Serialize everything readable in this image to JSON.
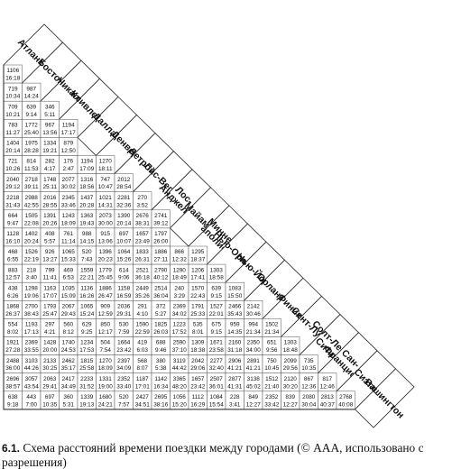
{
  "cities": [
    [
      "Атланта"
    ],
    [
      "Бостон"
    ],
    [
      "Чикаго"
    ],
    [
      "Кливленд"
    ],
    [
      "Даллас"
    ],
    [
      "Денвер"
    ],
    [
      "Детройт"
    ],
    [
      "Лас-Вегас"
    ],
    [
      "Лос-",
      "Анджелес"
    ],
    [
      "Майами"
    ],
    [
      "Минне-",
      "аполис"
    ],
    [
      "Нью-Орлеан"
    ],
    [
      "Нью-Йорк"
    ],
    [
      "Орландо"
    ],
    [
      "Финикс"
    ],
    [
      "Сент-Луис"
    ],
    [
      "Солт-Лейк-",
      "Сити"
    ],
    [
      "Сан-",
      "Франциско"
    ],
    [
      "Сиэтл"
    ],
    [
      "Вашингтон"
    ]
  ],
  "cells": [
    [
      [
        "1106",
        "16:18"
      ]
    ],
    [
      [
        "719",
        "10:34"
      ],
      [
        "987",
        "14:24"
      ]
    ],
    [
      [
        "709",
        "10:21"
      ],
      [
        "639",
        "9:14"
      ],
      [
        "346",
        "5:11"
      ]
    ],
    [
      [
        "783",
        "11:27"
      ],
      [
        "1772",
        "25:40"
      ],
      [
        "967",
        "13:56"
      ],
      [
        "1194",
        "17:17"
      ]
    ],
    [
      [
        "1404",
        "20:14"
      ],
      [
        "1975",
        "28:28"
      ],
      [
        "1334",
        "19:21"
      ],
      [
        "879",
        "12:50"
      ]
    ],
    [
      [
        "721",
        "10:26"
      ],
      [
        "814",
        "11:53"
      ],
      [
        "282",
        "4:17"
      ],
      [
        "176",
        "2:47"
      ],
      [
        "1194",
        "17:09"
      ],
      [
        "1270",
        "18:11"
      ]
    ],
    [
      [
        "2040",
        "29:12"
      ],
      [
        "2718",
        "39:11"
      ],
      [
        "1748",
        "25:11"
      ],
      [
        "2077",
        "30:02"
      ],
      [
        "1316",
        "18:56"
      ],
      [
        "747",
        "10:47"
      ],
      [
        "2012",
        "28:54"
      ]
    ],
    [
      [
        "2218",
        "31:43"
      ],
      [
        "2988",
        "42:55"
      ],
      [
        "2016",
        "28:55"
      ],
      [
        "2345",
        "33:46"
      ],
      [
        "1437",
        "20:28"
      ],
      [
        "1021",
        "14:31"
      ],
      [
        "2281",
        "32:36"
      ],
      [
        "270",
        "3:52"
      ]
    ],
    [
      [
        "664",
        "9:47"
      ],
      [
        "1505",
        "22:08"
      ],
      [
        "1391",
        "20:26"
      ],
      [
        "1243",
        "18:09"
      ],
      [
        "1363",
        "19:43"
      ],
      [
        "2073",
        "30:00"
      ],
      [
        "1390",
        "20:14"
      ],
      [
        "2676",
        "38:31"
      ],
      [
        "2741",
        "39:12"
      ]
    ],
    [
      [
        "1128",
        "16:10"
      ],
      [
        "1402",
        "20:24"
      ],
      [
        "408",
        "5:57"
      ],
      [
        "761",
        "11:14"
      ],
      [
        "988",
        "14:15"
      ],
      [
        "915",
        "13:06"
      ],
      [
        "697",
        "10:07"
      ],
      [
        "1657",
        "23:49"
      ],
      [
        "1797",
        "26:00"
      ]
    ],
    [
      [
        "468",
        "6:55"
      ],
      [
        "1526",
        "22:19"
      ],
      [
        "926",
        "13:27"
      ],
      [
        "1065",
        "15:33"
      ],
      [
        "520",
        "7:43"
      ],
      [
        "1396",
        "20:23"
      ],
      [
        "1064",
        "15:26"
      ],
      [
        "1833",
        "26:31"
      ],
      [
        "1886",
        "27:11"
      ],
      [
        "866",
        "12:32"
      ],
      [
        "1295",
        "18:37"
      ]
    ],
    [
      [
        "883",
        "12:57"
      ],
      [
        "218",
        "3:40"
      ],
      [
        "799",
        "11:41"
      ],
      [
        "469",
        "6:53"
      ],
      [
        "1559",
        "22:21"
      ],
      [
        "1779",
        "25:45"
      ],
      [
        "614",
        "9:06"
      ],
      [
        "2521",
        "36:18"
      ],
      [
        "2790",
        "40:12"
      ],
      [
        "1290",
        "18:49"
      ],
      [
        "1206",
        "17:41"
      ],
      [
        "1303",
        "18:58"
      ]
    ],
    [
      [
        "438",
        "6:26"
      ],
      [
        "1298",
        "19:06"
      ],
      [
        "1163",
        "17:07"
      ],
      [
        "1035",
        "15:09"
      ],
      [
        "1136",
        "16:26"
      ],
      [
        "1886",
        "26:47"
      ],
      [
        "1158",
        "16:59"
      ],
      [
        "2449",
        "35:26"
      ],
      [
        "2514",
        "36:04"
      ],
      [
        "240",
        "3:29"
      ],
      [
        "1570",
        "22:43"
      ],
      [
        "639",
        "9:15"
      ],
      [
        "1083",
        "15:50"
      ]
    ],
    [
      [
        "1868",
        "26:37"
      ],
      [
        "2700",
        "38:43"
      ],
      [
        "1793",
        "25:47"
      ],
      [
        "2067",
        "29:43"
      ],
      [
        "1065",
        "15:24"
      ],
      [
        "909",
        "12:59"
      ],
      [
        "2036",
        "29:31"
      ],
      [
        "291",
        "4:10"
      ],
      [
        "372",
        "5:27"
      ],
      [
        "2369",
        "34:02"
      ],
      [
        "1791",
        "25:33"
      ],
      [
        "1527",
        "22:01"
      ],
      [
        "2466",
        "35:43"
      ],
      [
        "2142",
        "30:46"
      ]
    ],
    [
      [
        "554",
        "8:02"
      ],
      [
        "1193",
        "17:13"
      ],
      [
        "297",
        "4:21"
      ],
      [
        "560",
        "8:12"
      ],
      [
        "629",
        "9:25"
      ],
      [
        "850",
        "12:17"
      ],
      [
        "530",
        "7:59"
      ],
      [
        "1590",
        "22:59"
      ],
      [
        "1825",
        "26:03"
      ],
      [
        "1223",
        "17:52"
      ],
      [
        "535",
        "8:01"
      ],
      [
        "675",
        "9:15"
      ],
      [
        "959",
        "14:35"
      ],
      [
        "994",
        "21:34"
      ],
      [
        "1502",
        "21:34"
      ]
    ],
    [
      [
        "1921",
        "27:28"
      ],
      [
        "2369",
        "33:55"
      ],
      [
        "1428",
        "20:00"
      ],
      [
        "1740",
        "24:53"
      ],
      [
        "1234",
        "17:53"
      ],
      [
        "504",
        "7:54"
      ],
      [
        "1664",
        "23:42"
      ],
      [
        "419",
        "6:03"
      ],
      [
        "688",
        "9:46"
      ],
      [
        "2590",
        "37:10"
      ],
      [
        "1309",
        "18:38"
      ],
      [
        "1671",
        "23:58"
      ],
      [
        "2160",
        "31:18"
      ],
      [
        "2350",
        "34:00"
      ],
      [
        "651",
        "9:56"
      ],
      [
        "1303",
        "18:48"
      ]
    ],
    [
      [
        "2488",
        "36:00"
      ],
      [
        "3103",
        "44:26"
      ],
      [
        "2133",
        "30:25"
      ],
      [
        "2462",
        "35:17"
      ],
      [
        "1815",
        "25:58"
      ],
      [
        "1270",
        "18:09"
      ],
      [
        "2397",
        "34:09"
      ],
      [
        "568",
        "8:07"
      ],
      [
        "380",
        "5:38"
      ],
      [
        "3119",
        "44:42"
      ],
      [
        "2042",
        "29:06"
      ],
      [
        "2277",
        "32:40"
      ],
      [
        "2906",
        "41:21"
      ],
      [
        "2891",
        "41:21"
      ],
      [
        "750",
        "10:45"
      ],
      [
        "2099",
        "29:56"
      ],
      [
        "735",
        "10:35"
      ]
    ],
    [
      [
        "2696",
        "38:57"
      ],
      [
        "3057",
        "43:54"
      ],
      [
        "2063",
        "29:41"
      ],
      [
        "2417",
        "34:49"
      ],
      [
        "2233",
        "31:52"
      ],
      [
        "1331",
        "19:00"
      ],
      [
        "2352",
        "33:40"
      ],
      [
        "1187",
        "17:01"
      ],
      [
        "1142",
        "16:34"
      ],
      [
        "3365",
        "48:20"
      ],
      [
        "1657",
        "23:42"
      ],
      [
        "2507",
        "36:01"
      ],
      [
        "2877",
        "41:31"
      ],
      [
        "3138",
        "45:02"
      ],
      [
        "1512",
        "21:40"
      ],
      [
        "2120",
        "30:20"
      ],
      [
        "867",
        "12:36"
      ],
      [
        "817",
        "12:46"
      ]
    ],
    [
      [
        "638",
        "9:18"
      ],
      [
        "443",
        "7:00"
      ],
      [
        "697",
        "10:35"
      ],
      [
        "360",
        "5:31"
      ],
      [
        "1339",
        "19:13"
      ],
      [
        "1680",
        "24:21"
      ],
      [
        "520",
        "7:57"
      ],
      [
        "2427",
        "34:51"
      ],
      [
        "2695",
        "38:16"
      ],
      [
        "1056",
        "15:20"
      ],
      [
        "1112",
        "16:29"
      ],
      [
        "1084",
        "15:54"
      ],
      [
        "228",
        "3:41"
      ],
      [
        "849",
        "12:27"
      ],
      [
        "2352",
        "33:42"
      ],
      [
        "839",
        "12:27"
      ],
      [
        "2080",
        "30:04"
      ],
      [
        "2813",
        "40:37"
      ],
      [
        "2768",
        "40:08"
      ]
    ]
  ],
  "caption": {
    "number": "6.1.",
    "text": " Схема расстояний времени поездки между городами (© AAA, использовано с разрешения)"
  }
}
